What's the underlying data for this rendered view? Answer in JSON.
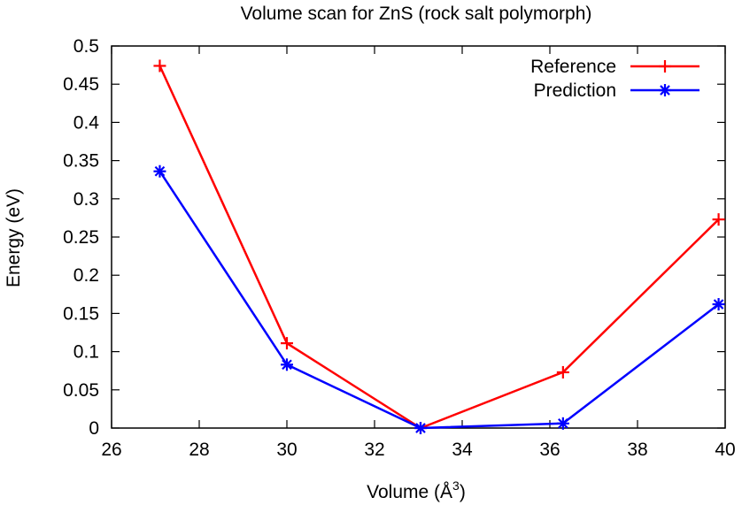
{
  "chart_data": {
    "type": "line",
    "title": "Volume scan for ZnS (rock salt polymorph)",
    "xlabel": "Volume (Å",
    "xlabel_sup": "3",
    "xlabel_close": ")",
    "ylabel": "Energy (eV)",
    "xlim": [
      26,
      40
    ],
    "ylim": [
      0,
      0.5
    ],
    "xticks": [
      26,
      28,
      30,
      32,
      34,
      36,
      38,
      40
    ],
    "yticks": [
      0,
      0.05,
      0.1,
      0.15,
      0.2,
      0.25,
      0.3,
      0.35,
      0.4,
      0.45,
      0.5
    ],
    "grid": false,
    "legend_position": "top-right",
    "series": [
      {
        "name": "Reference",
        "color": "#ff0000",
        "marker": "plus",
        "x": [
          27.1,
          30.0,
          33.05,
          36.3,
          39.85
        ],
        "y": [
          0.474,
          0.111,
          0.0,
          0.073,
          0.273
        ]
      },
      {
        "name": "Prediction",
        "color": "#0000ff",
        "marker": "asterisk",
        "x": [
          27.1,
          30.0,
          33.05,
          36.3,
          39.85
        ],
        "y": [
          0.336,
          0.083,
          0.0,
          0.006,
          0.162
        ]
      }
    ]
  }
}
